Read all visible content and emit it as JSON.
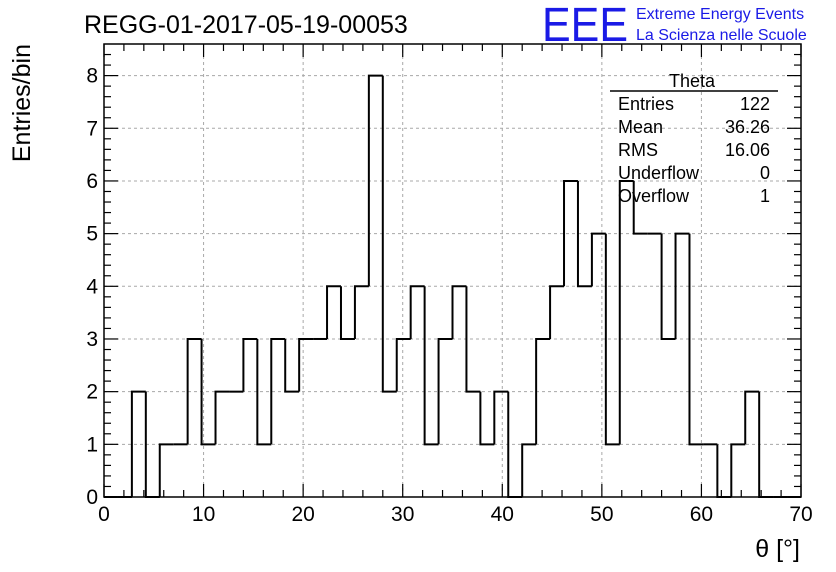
{
  "run_title": "REGG-01-2017-05-19-00053",
  "logo": {
    "mark": "EEE",
    "line1": "Extreme Energy Events",
    "line2": "La Scienza nelle Scuole",
    "color": "#1a1ae6"
  },
  "stats_box": {
    "title": "Theta",
    "rows": [
      {
        "label": "Entries",
        "value": "122"
      },
      {
        "label": "Mean",
        "value": "36.26"
      },
      {
        "label": "RMS",
        "value": "16.06"
      },
      {
        "label": "Underflow",
        "value": "0"
      },
      {
        "label": "Overflow",
        "value": "1"
      }
    ]
  },
  "chart_data": {
    "type": "bar",
    "style": "step-histogram",
    "xlabel": "θ [°]",
    "ylabel": "Entries/bin",
    "xlim": [
      0,
      70
    ],
    "ylim": [
      0,
      8.6
    ],
    "x_ticks": [
      "0",
      "10",
      "20",
      "30",
      "40",
      "50",
      "60",
      "70"
    ],
    "y_ticks": [
      "0",
      "1",
      "2",
      "3",
      "4",
      "5",
      "6",
      "7",
      "8"
    ],
    "grid": true,
    "bin_width": 1.4,
    "bin_lefts": [
      0.0,
      1.4,
      2.8,
      4.2,
      5.6,
      7.0,
      8.4,
      9.8,
      11.2,
      12.6,
      14.0,
      15.4,
      16.8,
      18.2,
      19.6,
      21.0,
      22.4,
      23.8,
      25.2,
      26.6,
      28.0,
      29.4,
      30.8,
      32.2,
      33.6,
      35.0,
      36.4,
      37.8,
      39.2,
      40.6,
      42.0,
      43.4,
      44.8,
      46.2,
      47.6,
      49.0,
      50.4,
      51.8,
      53.2,
      54.6,
      56.0,
      57.4,
      58.8,
      60.2,
      61.6,
      63.0,
      64.4,
      65.8,
      67.2,
      68.6
    ],
    "counts": [
      0,
      0,
      2,
      0,
      1,
      1,
      3,
      1,
      2,
      2,
      3,
      1,
      3,
      2,
      3,
      3,
      4,
      3,
      4,
      8,
      2,
      3,
      4,
      1,
      3,
      4,
      2,
      1,
      2,
      0,
      1,
      3,
      4,
      6,
      4,
      5,
      1,
      6,
      5,
      5,
      3,
      5,
      1,
      1,
      0,
      1,
      2,
      0,
      0,
      0
    ]
  }
}
